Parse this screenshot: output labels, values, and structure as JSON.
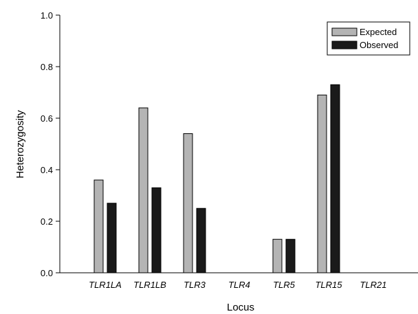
{
  "chart_data": {
    "type": "bar",
    "title": "",
    "xlabel": "Locus",
    "ylabel": "Heterozygosity",
    "ylim": [
      0,
      1.0
    ],
    "yticks": [
      "0.0",
      "0.2",
      "0.4",
      "0.6",
      "0.8",
      "1.0"
    ],
    "categories": [
      "TLR1LA",
      "TLR1LB",
      "TLR3",
      "TLR4",
      "TLR5",
      "TLR15",
      "TLR21"
    ],
    "series": [
      {
        "name": "Expected",
        "color": "#b4b4b4",
        "values": [
          0.36,
          0.64,
          0.54,
          0,
          0.13,
          0.69,
          0
        ]
      },
      {
        "name": "Observed",
        "color": "#1a1a1a",
        "values": [
          0.27,
          0.33,
          0.25,
          0,
          0.13,
          0.73,
          0
        ]
      }
    ],
    "legend": "top-right",
    "grid": false
  }
}
